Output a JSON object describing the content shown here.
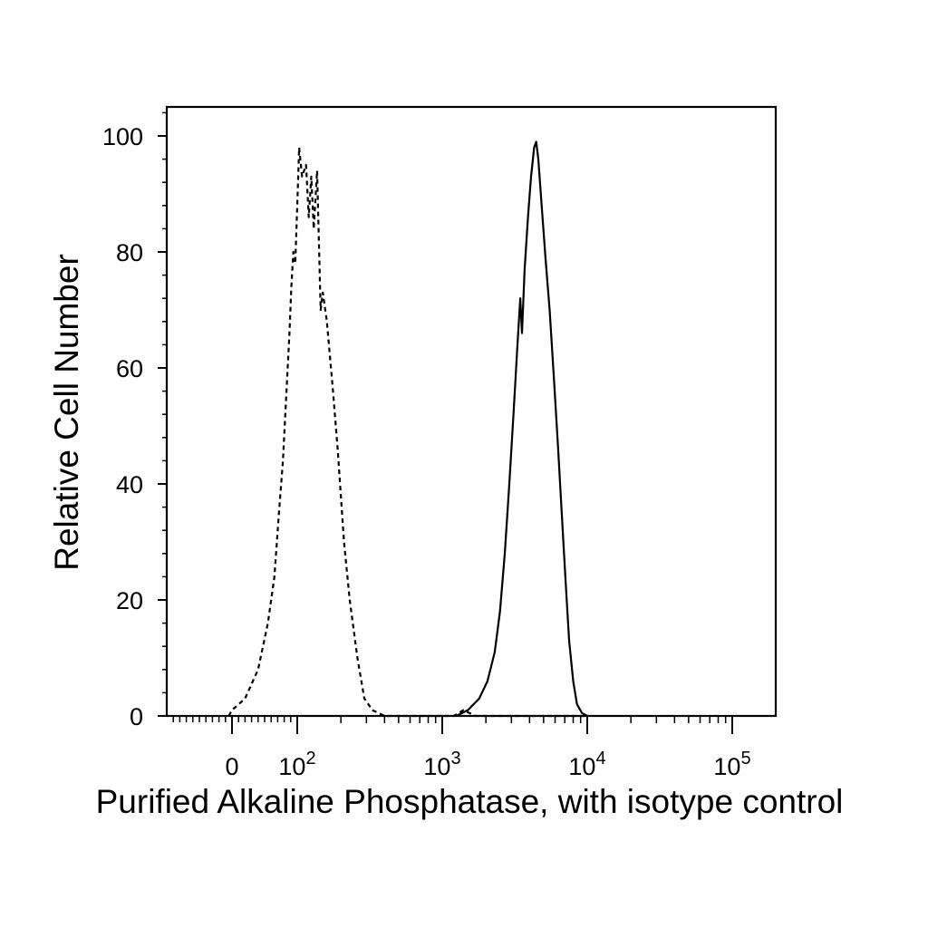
{
  "chart_data": {
    "type": "line",
    "xlabel": "Purified Alkaline Phosphatase, with isotype control",
    "ylabel": "Relative Cell Number",
    "x_scale": "biexponential",
    "ylim": [
      0,
      100
    ],
    "y_ticks": [
      0,
      20,
      40,
      60,
      80,
      100
    ],
    "y_tick_labels": [
      "0",
      "20",
      "40",
      "60",
      "80",
      "100"
    ],
    "x_ticks": [
      {
        "value": 0,
        "base": "0",
        "exp": ""
      },
      {
        "value": 100,
        "base": "10",
        "exp": "2"
      },
      {
        "value": 1000,
        "base": "10",
        "exp": "3"
      },
      {
        "value": 10000,
        "base": "10",
        "exp": "4"
      },
      {
        "value": 100000,
        "base": "10",
        "exp": "5"
      }
    ],
    "grid": false,
    "legend": "none",
    "series": [
      {
        "style": "dashed",
        "color": "#000000",
        "points": [
          [
            -5,
            0
          ],
          [
            0,
            1
          ],
          [
            20,
            3
          ],
          [
            40,
            8
          ],
          [
            55,
            16
          ],
          [
            65,
            24
          ],
          [
            72,
            35
          ],
          [
            78,
            44
          ],
          [
            83,
            55
          ],
          [
            88,
            66
          ],
          [
            91,
            74
          ],
          [
            94,
            80
          ],
          [
            97,
            78
          ],
          [
            100,
            88
          ],
          [
            103,
            98
          ],
          [
            108,
            93
          ],
          [
            115,
            95
          ],
          [
            120,
            86
          ],
          [
            125,
            93
          ],
          [
            130,
            84
          ],
          [
            137,
            94
          ],
          [
            145,
            70
          ],
          [
            150,
            73
          ],
          [
            160,
            68
          ],
          [
            175,
            57
          ],
          [
            190,
            46
          ],
          [
            210,
            30
          ],
          [
            230,
            20
          ],
          [
            260,
            10
          ],
          [
            290,
            3
          ],
          [
            330,
            1
          ],
          [
            400,
            0
          ],
          [
            1200,
            0
          ],
          [
            1400,
            1
          ],
          [
            1700,
            0
          ],
          [
            10000,
            0
          ]
        ]
      },
      {
        "style": "solid",
        "color": "#000000",
        "points": [
          [
            1250,
            0
          ],
          [
            1500,
            1
          ],
          [
            1800,
            3
          ],
          [
            2050,
            6
          ],
          [
            2300,
            11
          ],
          [
            2500,
            18
          ],
          [
            2700,
            28
          ],
          [
            2900,
            40
          ],
          [
            3100,
            52
          ],
          [
            3300,
            64
          ],
          [
            3450,
            72
          ],
          [
            3550,
            66
          ],
          [
            3700,
            77
          ],
          [
            3900,
            86
          ],
          [
            4100,
            93
          ],
          [
            4300,
            98
          ],
          [
            4450,
            99
          ],
          [
            4600,
            96
          ],
          [
            4850,
            88
          ],
          [
            5150,
            79
          ],
          [
            5500,
            70
          ],
          [
            5900,
            58
          ],
          [
            6300,
            46
          ],
          [
            6700,
            34
          ],
          [
            7100,
            23
          ],
          [
            7500,
            13
          ],
          [
            8000,
            6
          ],
          [
            8500,
            2
          ],
          [
            9200,
            0.5
          ],
          [
            10000,
            0
          ]
        ]
      }
    ]
  }
}
